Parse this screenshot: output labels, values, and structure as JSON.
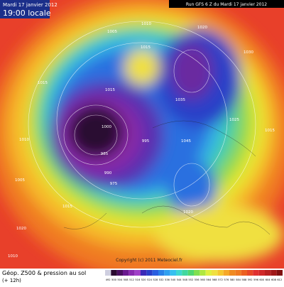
{
  "header": {
    "date": "Mardi 17 janvier 2012",
    "time": "19:00 locale",
    "run": "Run GFS 6 Z du Mardi 17 janvier 2012"
  },
  "map": {
    "copyright": "Copyright (c) 2011 Meteociel.fr",
    "pressure_labels": [
      "1005",
      "1010",
      "1015",
      "1015",
      "1010",
      "1005",
      "1020",
      "1030",
      "1025",
      "1015",
      "995",
      "990",
      "985",
      "975",
      "1000",
      "1035",
      "1045",
      "1020",
      "1015",
      "1010",
      "1020",
      "1015"
    ]
  },
  "footer": {
    "title": "Géop. Z500 & pression au sol",
    "step": "(+ 12h)",
    "scale": [
      "492",
      "500",
      "504",
      "508",
      "512",
      "516",
      "520",
      "524",
      "528",
      "532",
      "536",
      "540",
      "544",
      "548",
      "552",
      "556",
      "560",
      "564",
      "568",
      "572",
      "576",
      "580",
      "584",
      "588",
      "592",
      "596",
      "600",
      "604",
      "608",
      "612"
    ]
  }
}
